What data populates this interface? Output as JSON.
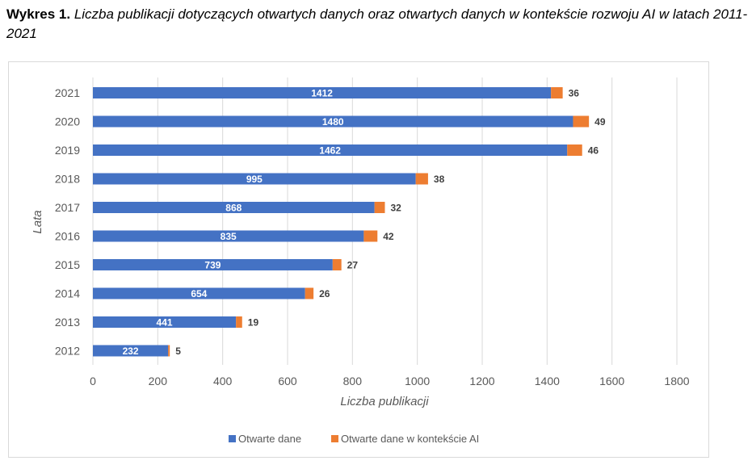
{
  "caption": {
    "label": "Wykres 1.",
    "text": "Liczba publikacji dotyczących otwartych danych oraz otwartych danych w kontekście rozwoju AI w latach 2011-2021"
  },
  "colors": {
    "series1": "#4472C4",
    "series2": "#ED7D31",
    "grid": "#d9d9d9",
    "axis_text": "#595959"
  },
  "chart_data": {
    "type": "bar",
    "orientation": "horizontal",
    "stacked": true,
    "categories": [
      "2021",
      "2020",
      "2019",
      "2018",
      "2017",
      "2016",
      "2015",
      "2014",
      "2013",
      "2012"
    ],
    "series": [
      {
        "name": "Otwarte dane",
        "values": [
          1412,
          1480,
          1462,
          995,
          868,
          835,
          739,
          654,
          441,
          232
        ]
      },
      {
        "name": "Otwarte dane w kontekście AI",
        "values": [
          36,
          49,
          46,
          38,
          32,
          42,
          27,
          26,
          19,
          5
        ]
      }
    ],
    "xlabel": "Liczba publikacji",
    "ylabel": "Lata",
    "xlim": [
      0,
      1800
    ],
    "xticks": [
      "0",
      "200",
      "400",
      "600",
      "800",
      "1000",
      "1200",
      "1400",
      "1600",
      "1800"
    ],
    "grid": true,
    "legend_position": "bottom"
  }
}
